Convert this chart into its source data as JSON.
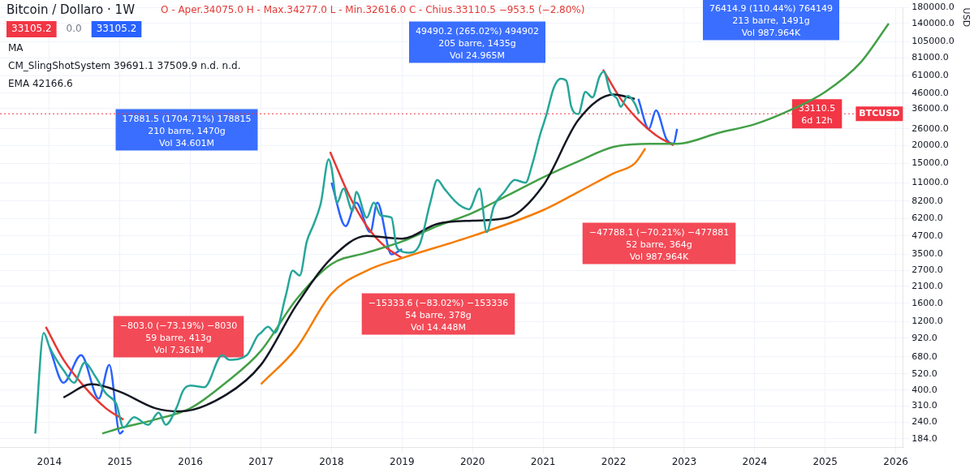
{
  "chart_data": {
    "type": "line",
    "title": "Bitcoin / Dollaro · 1W",
    "subtitle": "O - Aper.34075.0 H - Max.34277.0 L - Min.32616.0 C - Chius.33110.5 −953.5 (−2.80%)",
    "ylabel": "USD",
    "annotations": [
      "33105.2",
      "0.0",
      "33105.2",
      "MA",
      "CM_SlingShotSystem 39691.1 37509.9 n.d. n.d.",
      "EMA 42166.6",
      "17881.5 (1704.71%) 178815\n210 barre, 1470g\nVol 34.601M",
      "49490.2 (265.02%) 494902\n205 barre, 1435g\nVol 24.965M",
      "76414.9 (110.44%) 764149\n213 barre, 1491g\nVol 987.964K",
      "−803.0 (−73.19%) −8030\n59 barre, 413g\nVol 7.361M",
      "−15333.6 (−83.02%) −153336\n54 barre, 378g\nVol 14.448M",
      "−47788.1 (−70.21%) −477881\n52 barre, 364g\nVol 987.964K",
      "33110.5\n6d 12h"
    ],
    "xlim": [
      2013.3,
      2026.1
    ],
    "xticks": [
      2014,
      2015,
      2016,
      2017,
      2018,
      2019,
      2020,
      2021,
      2022,
      2023,
      2024,
      2025,
      2026
    ],
    "log": true,
    "ylim": [
      160,
      180000
    ],
    "yticks": [
      {
        "value": 184,
        "label": "184.0"
      },
      {
        "value": 240,
        "label": "240.0"
      },
      {
        "value": 310,
        "label": "310.0"
      },
      {
        "value": 400,
        "label": "400.0"
      },
      {
        "value": 520,
        "label": "520.0"
      },
      {
        "value": 680,
        "label": "680.0"
      },
      {
        "value": 920,
        "label": "920.0"
      },
      {
        "value": 1200,
        "label": "1200.0"
      },
      {
        "value": 1600,
        "label": "1600.0"
      },
      {
        "value": 2100,
        "label": "2100.0"
      },
      {
        "value": 2700,
        "label": "2700.0"
      },
      {
        "value": 3500,
        "label": "3500.0"
      },
      {
        "value": 4700,
        "label": "4700.0"
      },
      {
        "value": 6200,
        "label": "6200.0"
      },
      {
        "value": 8200,
        "label": "8200.0"
      },
      {
        "value": 11000,
        "label": "11000.0"
      },
      {
        "value": 15000,
        "label": "15000.0"
      },
      {
        "value": 20000,
        "label": "20000.0"
      },
      {
        "value": 26000,
        "label": "26000.0"
      },
      {
        "value": 36000,
        "label": "36000.0"
      },
      {
        "value": 46000,
        "label": "46000.0"
      },
      {
        "value": 61000,
        "label": "61000.0"
      },
      {
        "value": 81000,
        "label": "81000.0"
      },
      {
        "value": 105000,
        "label": "105000.0"
      },
      {
        "value": 140000,
        "label": "140000.0"
      },
      {
        "value": 180000,
        "label": "180000.0"
      }
    ],
    "grid": true,
    "legend": false,
    "marker": "none",
    "ref_lines": [
      {
        "axis": "y",
        "value": 33110.5,
        "label": "BTCUSD",
        "color": "#f23645",
        "line_style": "dotted"
      }
    ],
    "series": [
      {
        "color": "#26a69a",
        "x": [
          2013.8,
          2013.92,
          2014.0,
          2014.1,
          2014.2,
          2014.35,
          2014.5,
          2014.65,
          2014.8,
          2014.95,
          2015.05,
          2015.2,
          2015.4,
          2015.55,
          2015.65,
          2015.8,
          2015.9,
          2016.0,
          2016.2,
          2016.45,
          2016.55,
          2016.8,
          2016.95,
          2017.0,
          2017.1,
          2017.2,
          2017.35,
          2017.45,
          2017.55,
          2017.65,
          2017.75,
          2017.85,
          2017.96,
          2018.0,
          2018.08,
          2018.17,
          2018.3,
          2018.35,
          2018.5,
          2018.6,
          2018.7,
          2018.85,
          2018.92,
          2018.98,
          2019.1,
          2019.25,
          2019.4,
          2019.5,
          2019.6,
          2019.75,
          2019.85,
          2019.95,
          2020.1,
          2020.2,
          2020.3,
          2020.45,
          2020.6,
          2020.75,
          2020.85,
          2020.95,
          2021.05,
          2021.15,
          2021.25,
          2021.33,
          2021.4,
          2021.5,
          2021.6,
          2021.7,
          2021.8,
          2021.86,
          2021.95,
          2022.05,
          2022.1,
          2022.2,
          2022.3,
          2022.36
        ],
        "values": [
          200,
          1000,
          800,
          650,
          550,
          450,
          620,
          500,
          380,
          320,
          220,
          260,
          230,
          280,
          230,
          300,
          400,
          430,
          420,
          700,
          650,
          700,
          950,
          1000,
          1100,
          1000,
          1800,
          2700,
          2500,
          4300,
          5700,
          8000,
          16000,
          14000,
          8000,
          10000,
          7000,
          9500,
          6300,
          8000,
          6500,
          6300,
          4000,
          3700,
          3600,
          4100,
          8000,
          11500,
          10000,
          8200,
          7500,
          7200,
          10000,
          5000,
          7500,
          9500,
          11500,
          11000,
          15000,
          23000,
          33000,
          50000,
          58000,
          56000,
          37000,
          33000,
          47000,
          43000,
          60000,
          65000,
          47000,
          42000,
          37000,
          44000,
          39000,
          33110.5
        ]
      },
      {
        "color": "#131722",
        "x": [
          2014.2,
          2014.6,
          2015.0,
          2015.5,
          2015.85,
          2016.5,
          2017.0,
          2017.5,
          2018.0,
          2018.5,
          2019.0,
          2019.5,
          2020.0,
          2020.5,
          2021.0,
          2021.5,
          2022.0,
          2022.3
        ],
        "values": [
          356,
          440,
          390,
          300,
          285,
          370,
          600,
          1550,
          3300,
          4700,
          4500,
          5700,
          6000,
          6300,
          10500,
          30000,
          45000,
          42000
        ]
      },
      {
        "color": "#43a047",
        "x": [
          2014.75,
          2015.0,
          2015.5,
          2016.0,
          2016.5,
          2017.0,
          2017.5,
          2018.0,
          2018.5,
          2019.0,
          2019.5,
          2020.0,
          2020.5,
          2021.0,
          2021.5,
          2022.0,
          2022.5,
          2022.9,
          2023.5,
          2024.0,
          2024.5,
          2025.0,
          2025.5,
          2025.9
        ],
        "values": [
          200,
          218,
          250,
          300,
          450,
          750,
          1700,
          3000,
          3600,
          4300,
          5500,
          6800,
          9000,
          12000,
          15500,
          19500,
          20500,
          20500,
          24500,
          28000,
          35000,
          47000,
          75000,
          140000
        ]
      },
      {
        "color": "#f57c00",
        "x": [
          2017.0,
          2017.5,
          2018.0,
          2018.5,
          2019.0,
          2020.0,
          2021.0,
          2021.5,
          2022.0,
          2022.3,
          2022.45
        ],
        "values": [
          440,
          780,
          1870,
          2700,
          3300,
          4700,
          7100,
          9500,
          12800,
          15000,
          19000
        ]
      },
      {
        "color": "#e53935",
        "x": [
          2013.95,
          2014.2,
          2014.5,
          2014.8,
          2015.05
        ],
        "values": [
          1100,
          650,
          420,
          300,
          250
        ]
      },
      {
        "color": "#e53935",
        "x": [
          2017.98,
          2018.25,
          2018.5,
          2018.75,
          2019.0
        ],
        "values": [
          18000,
          9000,
          5500,
          4000,
          3300
        ]
      },
      {
        "color": "#e53935",
        "x": [
          2021.85,
          2022.1,
          2022.35,
          2022.6,
          2022.85
        ],
        "values": [
          67000,
          42000,
          30000,
          23500,
          20000
        ]
      },
      {
        "color": "#2962ff",
        "x": [
          2014.0,
          2014.2,
          2014.45,
          2014.7,
          2014.85,
          2015.0,
          2015.05
        ],
        "values": [
          800,
          450,
          700,
          350,
          600,
          200,
          210
        ]
      },
      {
        "color": "#2962ff",
        "x": [
          2018.0,
          2018.2,
          2018.35,
          2018.55,
          2018.65,
          2018.85,
          2019.0
        ],
        "values": [
          11000,
          5500,
          8000,
          5000,
          8000,
          3500,
          3800
        ]
      },
      {
        "color": "#2962ff",
        "x": [
          2022.35,
          2022.5,
          2022.6,
          2022.75,
          2022.85,
          2022.9
        ],
        "values": [
          42000,
          26000,
          35000,
          22000,
          20500,
          26000
        ]
      }
    ]
  }
}
